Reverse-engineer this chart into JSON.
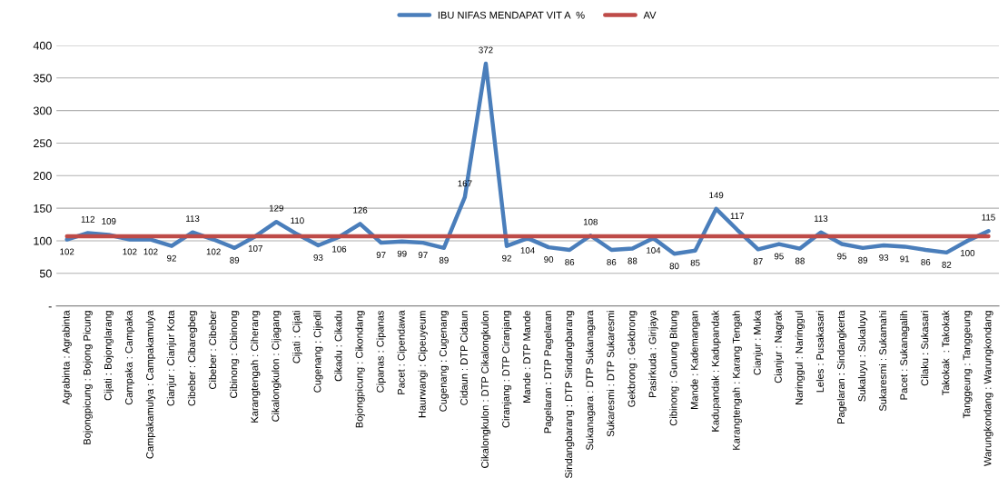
{
  "chart_data": {
    "type": "line",
    "categories": [
      "Agrabinta : Agrabinta",
      "Bojongpicung : Bojong Picung",
      "Cijati : Bojonglarang",
      "Campaka : Campaka",
      "Campakamulya : Campakamulya",
      "Cianjur : Cianjur Kota",
      "Cibeber : Cibaregbeg",
      "Cibeber : Cibeber",
      "Cibinong : Cibinong",
      "Karangtengah : Ciherang",
      "Cikalongkulon : Cijagang",
      "Cijati : Cijati",
      "Cugenang : Cijedil",
      "Cikadu : Cikadu",
      "Bojongpicung : Cikondang",
      "Cipanas : Cipanas",
      "Pacet : Cipendawa",
      "Haurwangi : Cipeuyeum",
      "Cugenang : Cugenang",
      "Cidaun : DTP Cidaun",
      "Cikalongkulon : DTP Cikalongkulon",
      "Ciranjang : DTP Ciranjang",
      "Mande : DTP Mande",
      "Pagelaran : DTP Pagelaran",
      "Sindangbarang : DTP Sindangbarang",
      "Sukanagara : DTP Sukanagara",
      "Sukaresmi : DTP Sukaresmi",
      "Gekbrong : Gekbrong",
      "Pasirkuda : Girijaya",
      "Cibinong : Gunung Bitung",
      "Mande : Kademangan",
      "Kadupandak : Kadupandak",
      "Karangtengah : Karang Tengah",
      "Cianjur : Muka",
      "Cianjur : Nagrak",
      "Naringgul : Naringgul",
      "Leles : Pusakasari",
      "Pagelaran : Sindangkerta",
      "Sukaluyu : Sukaluyu",
      "Sukaresmi : Sukamahi",
      "Pacet : Sukanagalih",
      "Cilaku : Sukasari",
      "Takokak  : Takokak",
      "Tanggeung : Tanggeung",
      "Warungkondang : Warungkondang"
    ],
    "series": [
      {
        "name": "IBU NIFAS MENDAPAT VIT A  %",
        "color": "#4a7ebb",
        "values": [
          102,
          112,
          109,
          102,
          102,
          92,
          113,
          102,
          89,
          107,
          129,
          110,
          93,
          106,
          126,
          97,
          99,
          97,
          89,
          167,
          372,
          92,
          104,
          90,
          86,
          108,
          86,
          88,
          104,
          80,
          85,
          149,
          117,
          87,
          95,
          88,
          113,
          95,
          89,
          93,
          91,
          86,
          82,
          100,
          115
        ],
        "value_labels": [
          "102",
          "112",
          "109",
          "102",
          "102",
          "92",
          "113",
          "102",
          "89",
          "107",
          "129",
          "110",
          "93",
          "106",
          "126",
          "97",
          "99",
          "97",
          "89",
          "167",
          "372",
          "92",
          "104",
          "90",
          "86",
          "108",
          "86",
          "88",
          "104",
          "80",
          "85",
          "149",
          "117",
          "87",
          "95",
          "88",
          "113",
          "95",
          "89",
          "93",
          "91",
          "86",
          "82",
          "100",
          "115"
        ]
      },
      {
        "name": "AV",
        "color": "#be4b48",
        "values": [
          107,
          107,
          107,
          107,
          107,
          107,
          107,
          107,
          107,
          107,
          107,
          107,
          107,
          107,
          107,
          107,
          107,
          107,
          107,
          107,
          107,
          107,
          107,
          107,
          107,
          107,
          107,
          107,
          107,
          107,
          107,
          107,
          107,
          107,
          107,
          107,
          107,
          107,
          107,
          107,
          107,
          107,
          107,
          107,
          107
        ]
      }
    ],
    "ylim": [
      0,
      400
    ],
    "yticks": [
      {
        "value": 0,
        "label": "-"
      },
      50,
      100,
      150,
      200,
      250,
      300,
      350,
      400
    ],
    "grid": "y",
    "legend": "top",
    "marker": "none",
    "line_style": "solid"
  }
}
